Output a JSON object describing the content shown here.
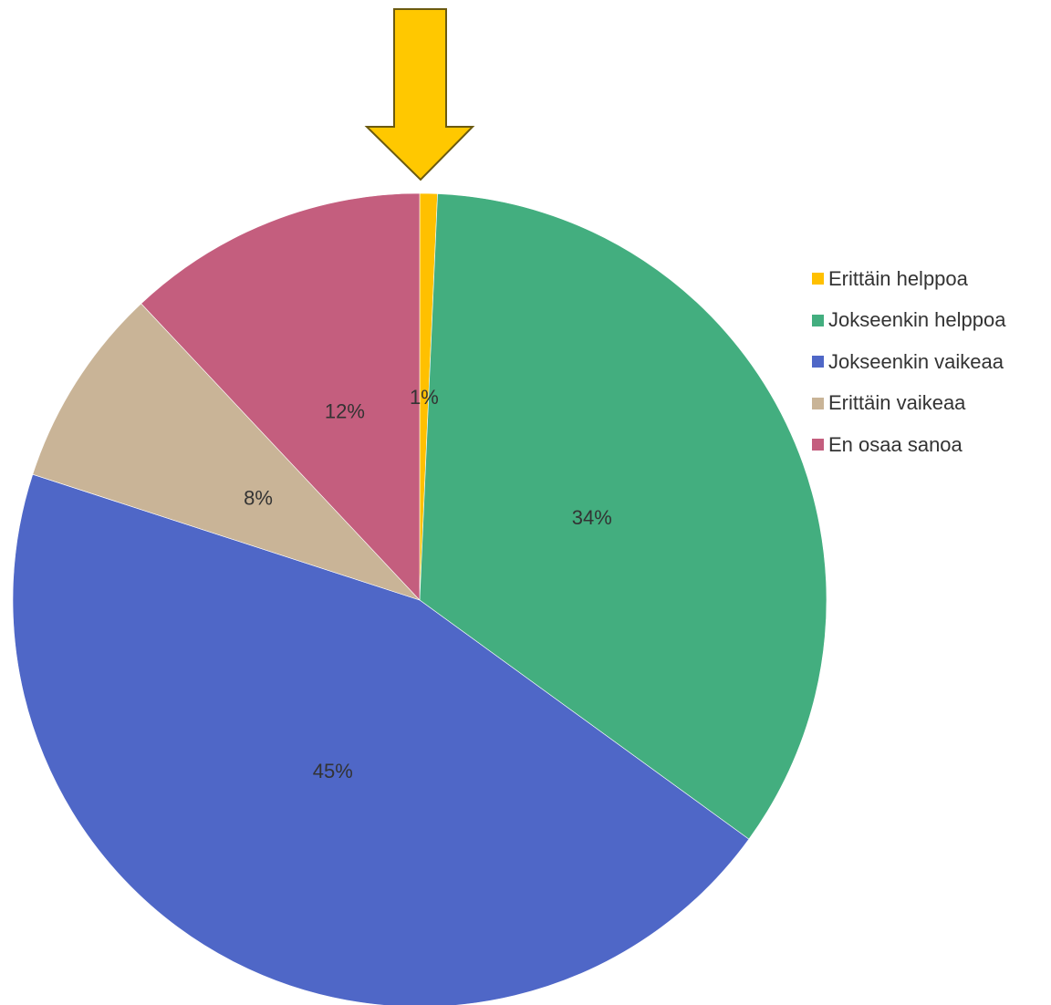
{
  "chart_data": {
    "type": "pie",
    "title": "",
    "categories": [
      "Erittäin helppoa",
      "Jokseenkin helppoa",
      "Jokseenkin vaikeaa",
      "Erittäin vaikeaa",
      "En osaa sanoa"
    ],
    "values": [
      0.7,
      34.3,
      45,
      8,
      12
    ],
    "labels": [
      "1%",
      "34%",
      "45%",
      "8%",
      "12%"
    ],
    "colors": [
      "#ffc000",
      "#43ae7f",
      "#4f67c7",
      "#c9b497",
      "#c45e7e"
    ],
    "legend_position": "right",
    "annotation": {
      "type": "arrow",
      "points_to": "Erittäin helppoa",
      "color": "#ffc800",
      "outline": "#6b5a10"
    }
  }
}
